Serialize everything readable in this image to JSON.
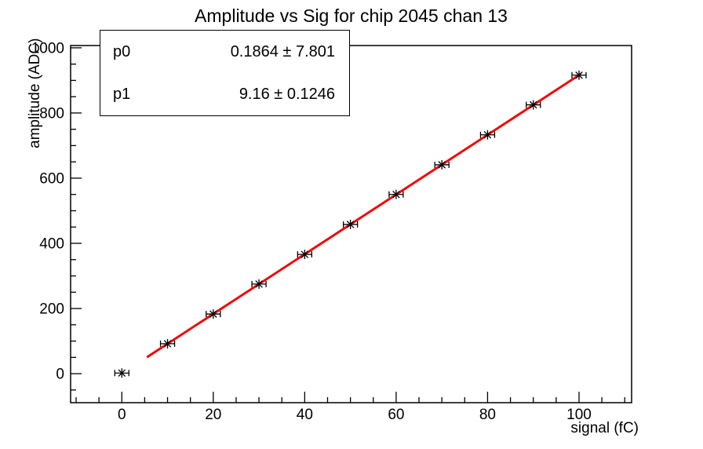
{
  "title": "Amplitude vs Sig for chip 2045 chan 13",
  "stats_box": {
    "rows": [
      {
        "name": "p0",
        "value": "0.1864 ± 7.801"
      },
      {
        "name": "p1",
        "value": "9.16 ± 0.1246"
      }
    ]
  },
  "colors": {
    "background": "#ffffff",
    "axis": "#000000",
    "marker": "#000000",
    "fit_line": "#f00a0a"
  },
  "chart_data": {
    "type": "scatter",
    "title": "Amplitude vs Sig for chip 2045 chan 13",
    "xlabel": "signal (fC)",
    "ylabel": "amplitude (ADC)",
    "x": [
      0,
      10,
      20,
      30,
      40,
      50,
      60,
      70,
      80,
      90,
      100
    ],
    "y": [
      2,
      92,
      183,
      275,
      366,
      458,
      550,
      641,
      733,
      825,
      916
    ],
    "x_error_half_width": 1.5,
    "marker_style": "asterisk-with-x-error-bars",
    "xlim": [
      -11.2,
      111.5
    ],
    "ylim": [
      -89,
      1007
    ],
    "x_major_ticks": [
      0,
      20,
      40,
      60,
      80,
      100
    ],
    "x_minor_step": 5,
    "y_major_ticks": [
      0,
      200,
      400,
      600,
      800,
      1000
    ],
    "y_minor_step": 50,
    "grid": false,
    "legend": "none",
    "fit": {
      "type": "linear",
      "p0": 0.1864,
      "p0_error": 7.801,
      "p1": 9.16,
      "p1_error": 0.1246,
      "x_range": [
        5.5,
        100.4
      ]
    }
  }
}
